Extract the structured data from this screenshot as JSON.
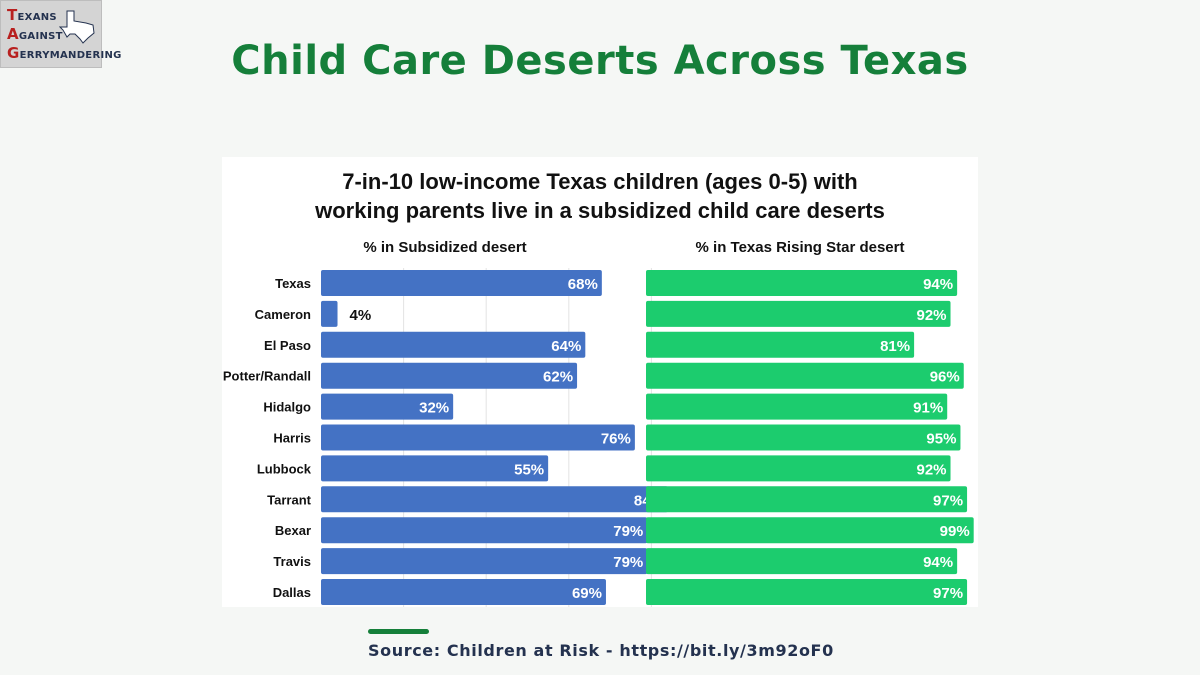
{
  "logo": {
    "line1_cap": "T",
    "line1_rest": "EXANS",
    "line2_cap": "A",
    "line2_rest": "GAINST",
    "line3_cap": "G",
    "line3_rest": "ERRYMANDERING"
  },
  "page_title": "Child Care Deserts Across Texas",
  "source": {
    "text": "Source: Children at Risk - https://bit.ly/3m92oF0"
  },
  "colors": {
    "title_green": "#157f3a",
    "subsidized_bar": "#4472c4",
    "rising_star_bar": "#1ccc6e",
    "source_navy": "#24324f",
    "logo_red": "#b8201f"
  },
  "chart_data": {
    "type": "bar",
    "orientation": "horizontal",
    "title_line1": "7-in-10 low-income Texas children (ages 0-5) with",
    "title_line2": "working parents live in a subsidized child care deserts",
    "categories": [
      "Texas",
      "Cameron",
      "El Paso",
      "Potter/Randall",
      "Hidalgo",
      "Harris",
      "Lubbock",
      "Tarrant",
      "Bexar",
      "Travis",
      "Dallas"
    ],
    "series": [
      {
        "name": "% in Subsidized desert",
        "values": [
          68,
          4,
          64,
          62,
          32,
          76,
          55,
          84,
          79,
          79,
          69
        ],
        "labels": [
          "68%",
          "4%",
          "64%",
          "62%",
          "32%",
          "76%",
          "55%",
          "84%",
          "79%",
          "79%",
          "69%"
        ]
      },
      {
        "name": "% in Texas Rising Star desert",
        "values": [
          94,
          92,
          81,
          96,
          91,
          95,
          92,
          97,
          99,
          94,
          97
        ],
        "labels": [
          "94%",
          "92%",
          "81%",
          "96%",
          "91%",
          "95%",
          "92%",
          "97%",
          "99%",
          "94%",
          "97%"
        ]
      }
    ],
    "xlim": [
      0,
      100
    ],
    "grid": true,
    "legend": "none"
  }
}
